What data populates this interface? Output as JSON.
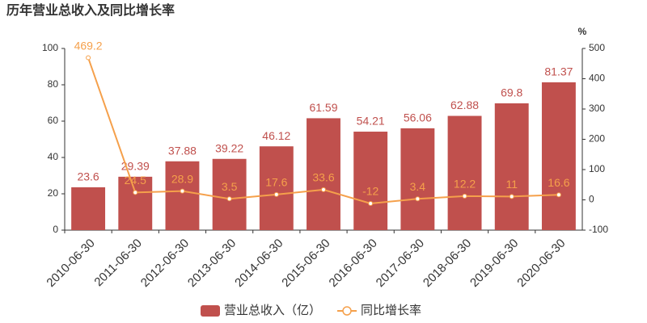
{
  "chart_data": {
    "type": "bar",
    "title": "历年营业总收入及同比增长率",
    "categories": [
      "2010-06-30",
      "2011-06-30",
      "2012-06-30",
      "2013-06-30",
      "2014-06-30",
      "2015-06-30",
      "2016-06-30",
      "2017-06-30",
      "2018-06-30",
      "2019-06-30",
      "2020-06-30"
    ],
    "series": [
      {
        "name": "营业总收入（亿）",
        "type": "bar",
        "color": "#c0504d",
        "label_color": "#c0504d",
        "values": [
          23.6,
          29.39,
          37.88,
          39.22,
          46.12,
          61.59,
          54.21,
          56.06,
          62.88,
          69.8,
          81.37
        ]
      },
      {
        "name": "同比增长率",
        "type": "line",
        "axis": "y2",
        "color": "#f5a04b",
        "label_color": "#f5a04b",
        "values": [
          469.2,
          24.5,
          28.9,
          3.5,
          17.6,
          33.6,
          -12,
          3.4,
          12.2,
          11,
          16.6
        ]
      }
    ],
    "ylim": [
      0,
      100
    ],
    "yticks": [
      0,
      20,
      40,
      60,
      80,
      100
    ],
    "y2lim": [
      -100,
      500
    ],
    "y2ticks": [
      -100,
      0,
      100,
      200,
      300,
      400,
      500
    ],
    "y2_label": "%",
    "grid": false
  }
}
